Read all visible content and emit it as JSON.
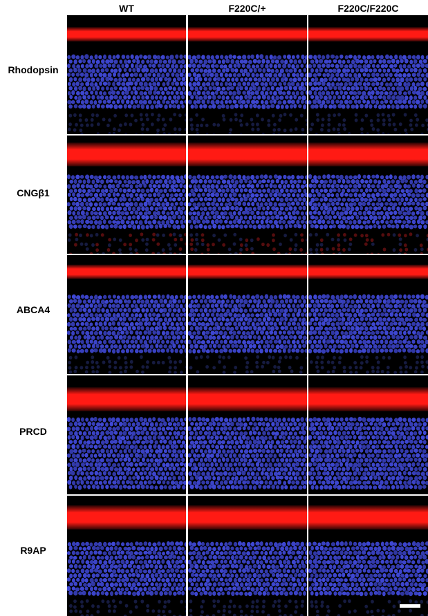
{
  "columns": [
    "WT",
    "F220C/+",
    "F220C/F220C"
  ],
  "rows": [
    "Rhodopsin",
    "CNGβ1",
    "ABCA4",
    "PRCD",
    "R9AP"
  ],
  "colors": {
    "nuclei": "#3f48d6",
    "stain": "#ff1a14",
    "background": "#000000",
    "scale_bar": "#ffffff"
  }
}
